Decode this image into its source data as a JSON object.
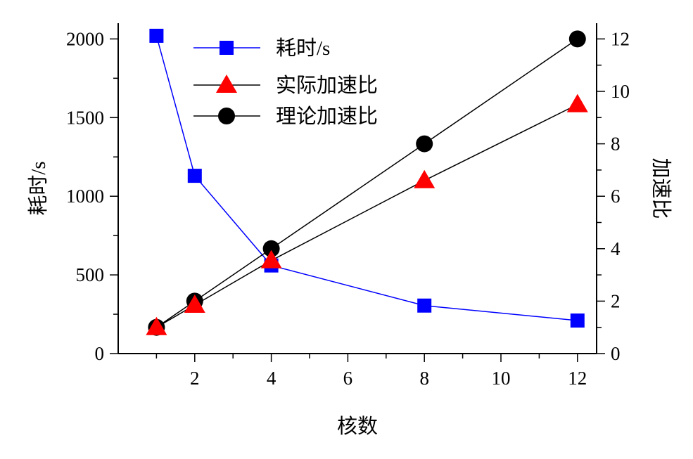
{
  "chart_data": {
    "type": "line",
    "x": [
      1,
      2,
      4,
      8,
      12
    ],
    "xlabel": "核数",
    "ylabel_left": "耗时/s",
    "ylabel_right": "加速比",
    "xlim": [
      0,
      12.5
    ],
    "ylim_left": [
      0,
      2100
    ],
    "ylim_right": [
      0,
      12.6
    ],
    "xticks": [
      2,
      4,
      6,
      8,
      10,
      12
    ],
    "yticks_left": [
      0,
      500,
      1000,
      1500,
      2000
    ],
    "yticks_right": [
      0,
      2,
      4,
      6,
      8,
      10,
      12
    ],
    "grid": false,
    "legend_position": "top-center",
    "series": [
      {
        "name": "耗时/s",
        "axis": "left",
        "marker": "square",
        "color": "#0000ff",
        "line_color": "#0000ff",
        "values": [
          2020,
          1130,
          560,
          305,
          210
        ]
      },
      {
        "name": "实际加速比",
        "axis": "right",
        "marker": "triangle",
        "color": "#ff0000",
        "line_color": "#000000",
        "values": [
          1.0,
          1.85,
          3.55,
          6.6,
          9.5
        ]
      },
      {
        "name": "理论加速比",
        "axis": "right",
        "marker": "circle",
        "color": "#000000",
        "line_color": "#000000",
        "values": [
          1,
          2,
          4,
          8,
          12
        ]
      }
    ]
  }
}
